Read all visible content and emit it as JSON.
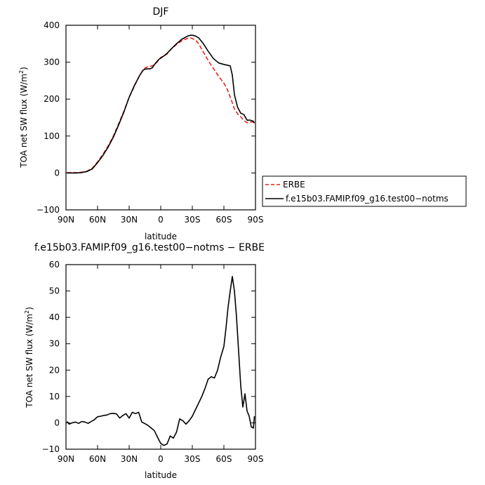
{
  "chart_data": [
    {
      "type": "line",
      "title": "DJF",
      "xlabel": "latitude",
      "ylabel": "TOA net SW flux (W/m²)",
      "ylabel_parts": [
        "TOA net SW flux (W/m",
        "2",
        ")"
      ],
      "xlim": [
        90,
        -90
      ],
      "ylim": [
        -100,
        400
      ],
      "xtick_values": [
        90,
        60,
        30,
        0,
        -30,
        -60,
        -90
      ],
      "xtick_labels": [
        "90N",
        "60N",
        "30N",
        "0",
        "30S",
        "60S",
        "90S"
      ],
      "ytick_values": [
        -100,
        0,
        100,
        200,
        300,
        400
      ],
      "ytick_labels": [
        "−100",
        "0",
        "100",
        "200",
        "300",
        "400"
      ],
      "legend": [
        "ERBE",
        "f.e15b03.FAMIP.f09_g16.test00−notms"
      ],
      "series": [
        {
          "name": "ERBE",
          "color": "#e8231f",
          "style": "dashed",
          "x": [
            89,
            85,
            80,
            75,
            70,
            65,
            60,
            55,
            50,
            45,
            40,
            35,
            30,
            25,
            20,
            15,
            12,
            10,
            8,
            5,
            2,
            0,
            -3,
            -6,
            -10,
            -15,
            -20,
            -25,
            -28,
            -30,
            -33,
            -36,
            -40,
            -45,
            -50,
            -55,
            -60,
            -63,
            -65,
            -68,
            -70,
            -73,
            -76,
            -79,
            -82,
            -85,
            -88,
            -89
          ],
          "y": [
            1,
            1,
            1,
            2,
            5,
            13,
            30,
            50,
            73,
            100,
            133,
            167,
            205,
            235,
            265,
            284,
            288,
            289,
            290,
            296,
            305,
            313,
            317,
            322,
            336,
            348,
            358,
            364,
            366,
            364,
            360,
            350,
            330,
            305,
            283,
            262,
            243,
            228,
            213,
            190,
            173,
            160,
            152,
            142,
            136,
            138,
            138,
            132
          ]
        },
        {
          "name": "f.e15b03.FAMIP.f09_g16.test00−notms",
          "color": "#000000",
          "style": "solid",
          "x": [
            89,
            85,
            80,
            75,
            70,
            65,
            60,
            55,
            50,
            45,
            40,
            35,
            30,
            25,
            20,
            17,
            15,
            12,
            10,
            8,
            5,
            2,
            0,
            -3,
            -6,
            -10,
            -15,
            -20,
            -25,
            -28,
            -30,
            -33,
            -36,
            -40,
            -45,
            -50,
            -55,
            -60,
            -63,
            -66,
            -68,
            -70,
            -73,
            -76,
            -79,
            -82,
            -85,
            -88,
            -89
          ],
          "y": [
            0,
            0,
            0,
            1,
            4,
            11,
            28,
            47,
            70,
            97,
            130,
            165,
            205,
            237,
            264,
            278,
            281,
            282,
            282,
            285,
            297,
            307,
            311,
            317,
            324,
            336,
            350,
            362,
            370,
            373,
            373,
            371,
            366,
            352,
            330,
            310,
            298,
            294,
            292,
            290,
            265,
            212,
            178,
            162,
            158,
            143,
            143,
            140,
            135
          ]
        }
      ]
    },
    {
      "type": "line",
      "title": "f.e15b03.FAMIP.f09_g16.test00−notms − ERBE",
      "xlabel": "latitude",
      "ylabel": "TOA net SW flux (W/m²)",
      "ylabel_parts": [
        "TOA net SW flux (W/m",
        "2",
        ")"
      ],
      "xlim": [
        90,
        -90
      ],
      "ylim": [
        -10,
        60
      ],
      "xtick_values": [
        90,
        60,
        30,
        0,
        -30,
        -60,
        -90
      ],
      "xtick_labels": [
        "90N",
        "60N",
        "30N",
        "0",
        "30S",
        "60S",
        "90S"
      ],
      "ytick_values": [
        -10,
        0,
        10,
        20,
        30,
        40,
        50,
        60
      ],
      "ytick_labels": [
        "−10",
        "0",
        "10",
        "20",
        "30",
        "40",
        "50",
        "60"
      ],
      "series": [
        {
          "color": "#000000",
          "style": "solid",
          "x": [
            89,
            87,
            84,
            81,
            78,
            75,
            72,
            69,
            66,
            63,
            60,
            57,
            54,
            51,
            48,
            45,
            42,
            39,
            36,
            33,
            30,
            27,
            24,
            21,
            18,
            15,
            12,
            9,
            6,
            3,
            0,
            -3,
            -6,
            -9,
            -12,
            -15,
            -18,
            -21,
            -24,
            -27,
            -30,
            -33,
            -36,
            -39,
            -42,
            -45,
            -48,
            -51,
            -54,
            -57,
            -60,
            -62,
            -64,
            -66,
            -68,
            -70,
            -72,
            -74,
            -76,
            -78,
            -80,
            -82,
            -84,
            -86,
            -88,
            -89
          ],
          "y": [
            0.5,
            -0.5,
            0,
            0.3,
            -0.2,
            0.5,
            0.3,
            -0.2,
            0.5,
            1.2,
            2.3,
            2.5,
            2.8,
            3.0,
            3.5,
            3.6,
            3.4,
            1.8,
            2.8,
            3.5,
            1.8,
            4.0,
            3.5,
            4.0,
            0.3,
            -0.3,
            -1.0,
            -2.0,
            -3.0,
            -5.5,
            -7.8,
            -8.6,
            -8.0,
            -5.0,
            -5.8,
            -3.5,
            1.5,
            0.8,
            -0.5,
            0.8,
            2.5,
            5.0,
            7.5,
            10.0,
            13.0,
            16.5,
            17.5,
            17.0,
            20.0,
            25.0,
            29.0,
            36.0,
            44.0,
            50.0,
            55.5,
            50.0,
            40.0,
            27.0,
            14.0,
            6.0,
            11.0,
            4.5,
            2.5,
            -1.5,
            -2.0,
            2.5
          ]
        }
      ]
    }
  ]
}
